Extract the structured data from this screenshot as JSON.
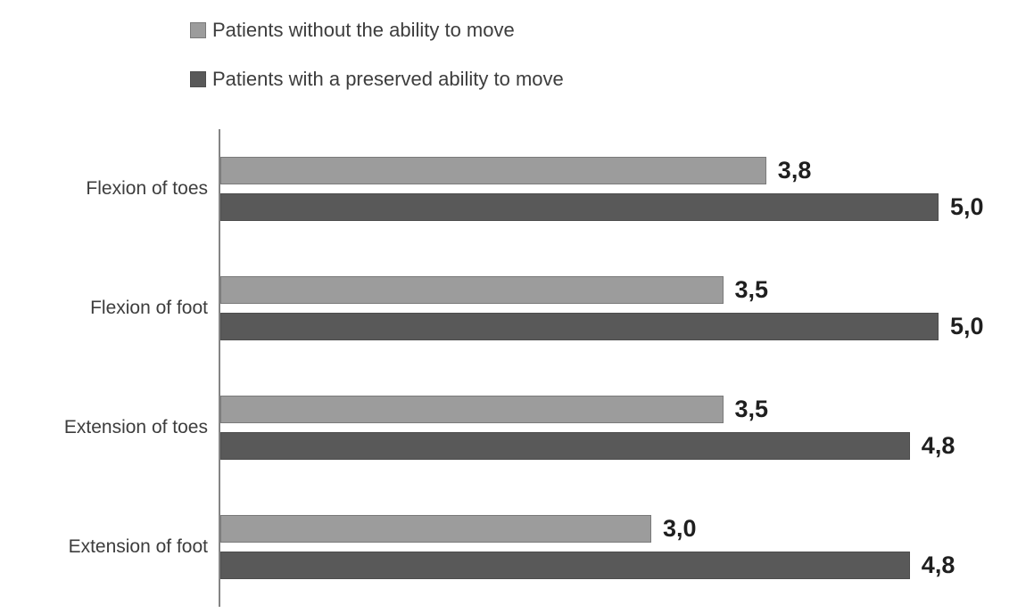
{
  "legend": {
    "items": [
      {
        "label": "Patients without the ability to move",
        "color": "#9c9c9c",
        "border": "#7a7a7a"
      },
      {
        "label": "Patients with a preserved ability to move",
        "color": "#595959",
        "border": "#4d4d4d"
      }
    ]
  },
  "chart_data": {
    "type": "bar",
    "orientation": "horizontal",
    "title": "",
    "xlabel": "",
    "ylabel": "",
    "categories": [
      "Flexion of toes",
      "Flexion of foot",
      "Extension of toes",
      "Extension of foot"
    ],
    "series": [
      {
        "name": "Patients without the ability to move",
        "color": "#9c9c9c",
        "border_color": "#7a7a7a",
        "values": [
          3.8,
          3.5,
          3.5,
          3.0
        ],
        "value_labels": [
          "3,8",
          "3,5",
          "3,5",
          "3,0"
        ]
      },
      {
        "name": "Patients with a preserved ability to move",
        "color": "#595959",
        "border_color": "#4d4d4d",
        "values": [
          5.0,
          5.0,
          4.8,
          4.8
        ],
        "value_labels": [
          "5,0",
          "5,0",
          "4,8",
          "4,8"
        ]
      }
    ],
    "xlim": [
      0,
      5
    ],
    "grid": false,
    "legend_position": "top-left",
    "value_label_format": "decimal-comma",
    "axis_line_color": "#848484",
    "text_color": "#3d3d3d",
    "value_label_color": "#1f1f1f"
  }
}
